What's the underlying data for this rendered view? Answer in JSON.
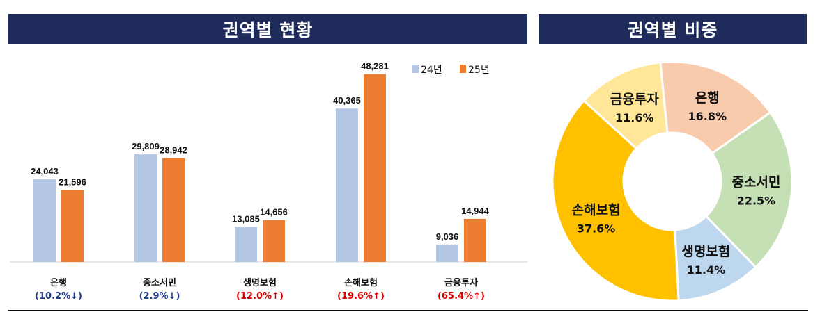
{
  "titles": {
    "bar": "권역별 현황",
    "pie": "권역별 비중"
  },
  "colors": {
    "y24": "#b4c7e7",
    "y25": "#ed7d31",
    "header": "#1f2b5b",
    "down": "#1f3a8a",
    "up": "#e00000"
  },
  "chart_data": [
    {
      "type": "bar",
      "title": "권역별 현황",
      "categories": [
        "은행",
        "중소서민",
        "생명보험",
        "손해보험",
        "금융투자"
      ],
      "series": [
        {
          "name": "24년",
          "values": [
            24043,
            29809,
            13085,
            40365,
            9036
          ],
          "labels": [
            "24,043",
            "29,809",
            "13,085",
            "40,365",
            "9,036"
          ]
        },
        {
          "name": "25년",
          "values": [
            21596,
            28942,
            14656,
            48281,
            14944
          ],
          "labels": [
            "21,596",
            "28,942",
            "14,656",
            "48,281",
            "14,944"
          ]
        }
      ],
      "changes": [
        {
          "text": "(10.2%↓)",
          "direction": "down"
        },
        {
          "text": "(2.9%↓)",
          "direction": "down"
        },
        {
          "text": "(12.0%↑)",
          "direction": "up"
        },
        {
          "text": "(19.6%↑)",
          "direction": "up"
        },
        {
          "text": "(65.4%↑)",
          "direction": "up"
        }
      ],
      "ylim": [
        5000,
        50000
      ],
      "grid": false,
      "legend": "top-right"
    },
    {
      "type": "pie",
      "donut": true,
      "title": "권역별 비중",
      "slices": [
        {
          "label": "은행",
          "value": 16.8,
          "text": "16.8%",
          "color": "#f8cbad"
        },
        {
          "label": "중소서민",
          "value": 22.5,
          "text": "22.5%",
          "color": "#c5e0b4"
        },
        {
          "label": "생명보험",
          "value": 11.4,
          "text": "11.4%",
          "color": "#bdd7ee"
        },
        {
          "label": "손해보험",
          "value": 37.6,
          "text": "37.6%",
          "color": "#ffc000"
        },
        {
          "label": "금융투자",
          "value": 11.6,
          "text": "11.6%",
          "color": "#ffe699"
        }
      ]
    }
  ]
}
